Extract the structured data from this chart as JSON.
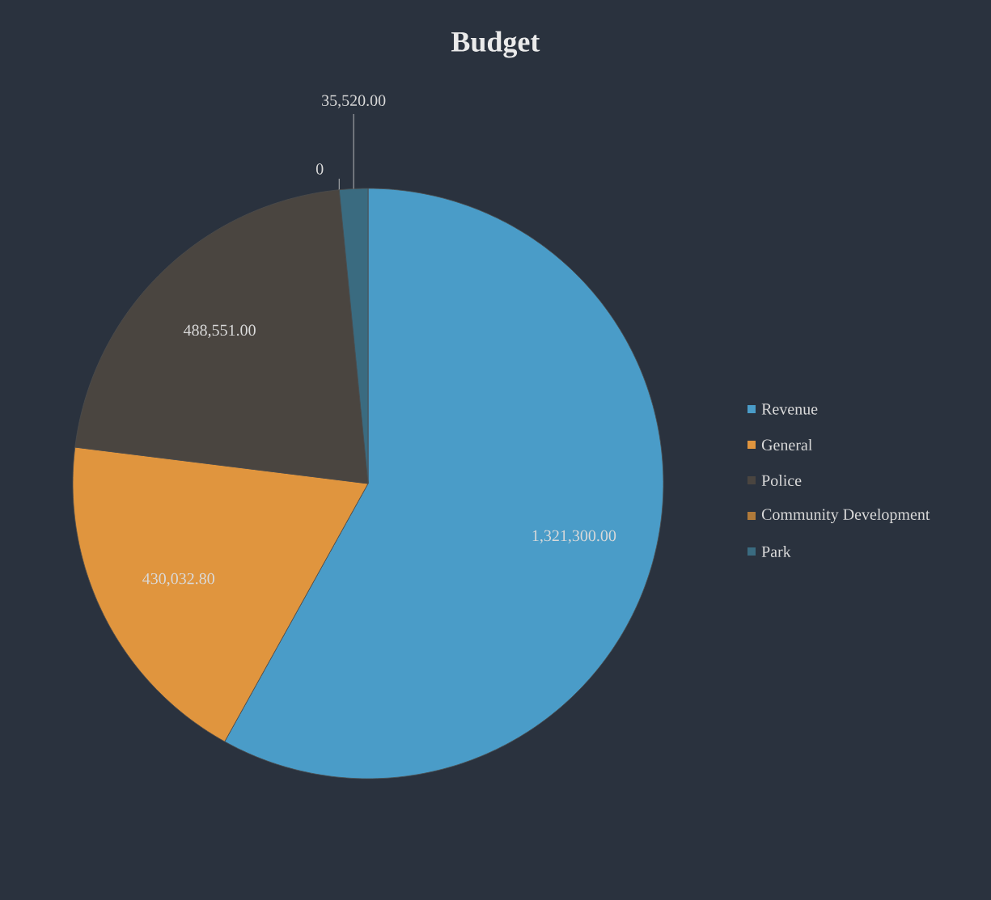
{
  "chart_data": {
    "type": "pie",
    "title": "Budget",
    "categories": [
      "Revenue",
      "General",
      "Police",
      "Community Development",
      "Park"
    ],
    "values": [
      1321300.0,
      430032.8,
      488551.0,
      0,
      35520.0
    ],
    "value_labels": [
      "1,321,300.00",
      "430,032.80",
      "488,551.00",
      "0",
      "35,520.00"
    ],
    "colors": [
      "#4a9cc8",
      "#e0953e",
      "#4a4540",
      "#b07a3a",
      "#3a6b80"
    ],
    "legend": "right"
  }
}
